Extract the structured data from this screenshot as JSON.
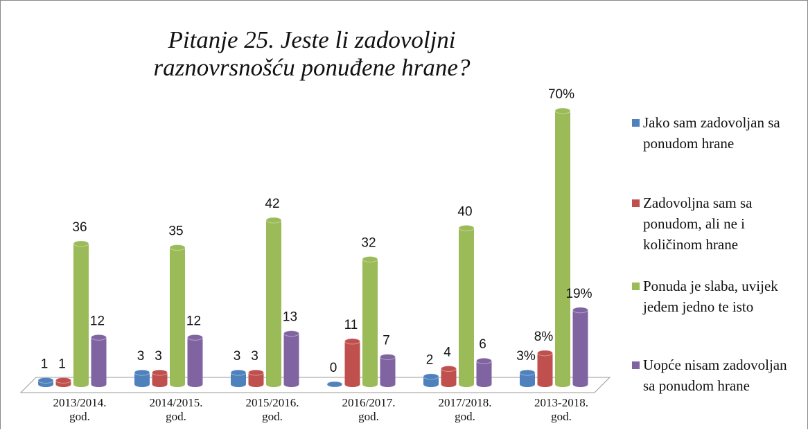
{
  "chart_data": {
    "type": "bar3d",
    "title": "Pitanje 25. Jeste li zadovoljni raznovrsnošću ponuđene hrane?",
    "categories": [
      "2013/2014. god.",
      "2014/2015. god.",
      "2015/2016. god.",
      "2016/2017. god.",
      "2017/2018. god.",
      "2013-2018. god."
    ],
    "series": [
      {
        "name": "Jako sam zadovoljan sa ponudom hrane",
        "color": "#4f81bd",
        "values": [
          1,
          3,
          3,
          0,
          2,
          3
        ],
        "value_labels": [
          "1",
          "3",
          "3",
          "0",
          "2",
          "3%"
        ]
      },
      {
        "name": "Zadovoljna sam sa ponudom, ali ne i količinom hrane",
        "color": "#c0504d",
        "values": [
          1,
          3,
          3,
          11,
          4,
          8
        ],
        "value_labels": [
          "1",
          "3",
          "3",
          "11",
          "4",
          "8%"
        ]
      },
      {
        "name": "Ponuda je slaba, uvijek jedem jedno te isto",
        "color": "#9bbb59",
        "values": [
          36,
          35,
          42,
          32,
          40,
          70
        ],
        "value_labels": [
          "36",
          "35",
          "42",
          "32",
          "40",
          "70%"
        ]
      },
      {
        "name": "Uopće nisam zadovoljan sa ponudom hrane",
        "color": "#8064a2",
        "values": [
          12,
          12,
          13,
          7,
          6,
          19
        ],
        "value_labels": [
          "12",
          "12",
          "13",
          "7",
          "6",
          "19%"
        ]
      }
    ],
    "legend": "right"
  }
}
